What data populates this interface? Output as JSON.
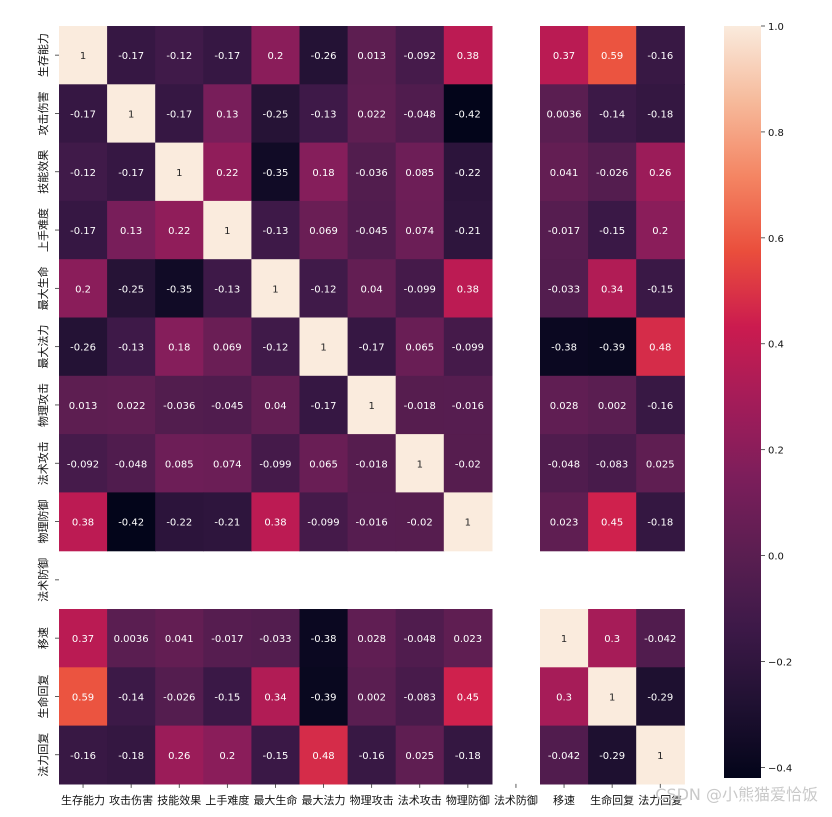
{
  "chart_data": {
    "type": "heatmap",
    "x_labels": [
      "生存能力",
      "攻击伤害",
      "技能效果",
      "上手难度",
      "最大生命",
      "最大法力",
      "物理攻击",
      "法术攻击",
      "物理防御",
      "法术防御",
      "移速",
      "生命回复",
      "法力回复"
    ],
    "y_labels": [
      "生存能力",
      "攻击伤害",
      "技能效果",
      "上手难度",
      "最大生命",
      "最大法力",
      "物理攻击",
      "法术攻击",
      "物理防御",
      "法术防御",
      "移速",
      "生命回复",
      "法力回复"
    ],
    "values": [
      [
        1,
        -0.17,
        -0.12,
        -0.17,
        0.2,
        -0.26,
        0.013,
        -0.092,
        0.38,
        null,
        0.37,
        0.59,
        -0.16
      ],
      [
        -0.17,
        1,
        -0.17,
        0.13,
        -0.25,
        -0.13,
        0.022,
        -0.048,
        -0.42,
        null,
        0.0036,
        -0.14,
        -0.18
      ],
      [
        -0.12,
        -0.17,
        1,
        0.22,
        -0.35,
        0.18,
        -0.036,
        0.085,
        -0.22,
        null,
        0.041,
        -0.026,
        0.26
      ],
      [
        -0.17,
        0.13,
        0.22,
        1,
        -0.13,
        0.069,
        -0.045,
        0.074,
        -0.21,
        null,
        -0.017,
        -0.15,
        0.2
      ],
      [
        0.2,
        -0.25,
        -0.35,
        -0.13,
        1,
        -0.12,
        0.04,
        -0.099,
        0.38,
        null,
        -0.033,
        0.34,
        -0.15
      ],
      [
        -0.26,
        -0.13,
        0.18,
        0.069,
        -0.12,
        1,
        -0.17,
        0.065,
        -0.099,
        null,
        -0.38,
        -0.39,
        0.48
      ],
      [
        0.013,
        0.022,
        -0.036,
        -0.045,
        0.04,
        -0.17,
        1,
        -0.018,
        -0.016,
        null,
        0.028,
        0.002,
        -0.16
      ],
      [
        -0.092,
        -0.048,
        0.085,
        0.074,
        -0.099,
        0.065,
        -0.018,
        1,
        -0.02,
        null,
        -0.048,
        -0.083,
        0.025
      ],
      [
        0.38,
        -0.42,
        -0.22,
        -0.21,
        0.38,
        -0.099,
        -0.016,
        -0.02,
        1,
        null,
        0.023,
        0.45,
        -0.18
      ],
      [
        null,
        null,
        null,
        null,
        null,
        null,
        null,
        null,
        null,
        null,
        null,
        null,
        null
      ],
      [
        0.37,
        0.0036,
        0.041,
        -0.017,
        -0.033,
        -0.38,
        0.028,
        -0.048,
        0.023,
        null,
        1,
        0.3,
        -0.042
      ],
      [
        0.59,
        -0.14,
        -0.026,
        -0.15,
        0.34,
        -0.39,
        0.002,
        -0.083,
        0.45,
        null,
        0.3,
        1,
        -0.29
      ],
      [
        -0.16,
        -0.18,
        0.26,
        0.2,
        -0.15,
        0.48,
        -0.16,
        0.025,
        -0.18,
        null,
        -0.042,
        -0.29,
        1
      ]
    ],
    "colorbar": {
      "ticks": [
        1.0,
        0.8,
        0.6,
        0.4,
        0.2,
        0.0,
        -0.2,
        -0.4
      ],
      "tick_labels": [
        "1.0",
        "0.8",
        "0.6",
        "0.4",
        "0.2",
        "0.0",
        "−0.2",
        "−0.4"
      ],
      "vmin": -0.42,
      "vmax": 1.0,
      "colormap": "rocket"
    },
    "title": "",
    "xlabel": "",
    "ylabel": ""
  },
  "watermark": "CSDN @小熊猫爱恰饭"
}
